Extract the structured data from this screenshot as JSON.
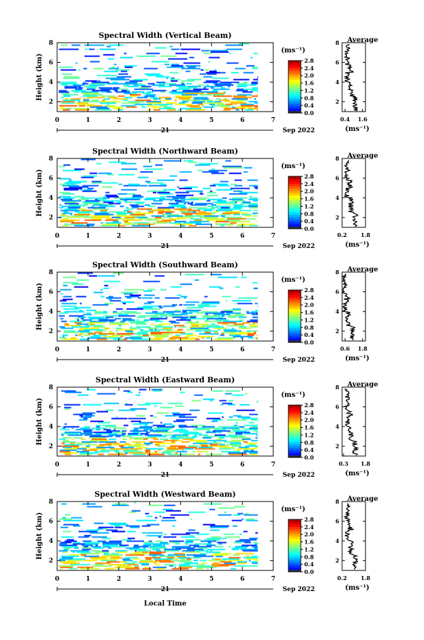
{
  "figure": {
    "xlabel": "Local Time",
    "unit_label": "(ms⁻¹)",
    "date_day": "21",
    "date_month_year": "Sep 2022"
  },
  "chart_data": [
    {
      "type": "heatmap",
      "title": "Spectral Width (Vertical Beam)",
      "ylabel": "Height (km)",
      "xlim": [
        0,
        7
      ],
      "ylim": [
        1,
        8
      ],
      "x_ticks": [
        "0",
        "1",
        "2",
        "3",
        "4",
        "5",
        "6",
        "7"
      ],
      "y_ticks": [
        "2",
        "4",
        "6",
        "8"
      ],
      "colorbar": {
        "label": "(ms⁻¹)",
        "ticks": [
          "0.0",
          "0.4",
          "0.8",
          "1.2",
          "1.6",
          "2.0",
          "2.4",
          "2.8"
        ],
        "range": [
          0,
          2.8
        ]
      },
      "average": {
        "title": "Average",
        "xlabel": "(ms⁻¹)",
        "x_ticks": [
          "0.4",
          "1.6"
        ],
        "xlim": [
          0.2,
          1.8
        ],
        "y_ticks": [
          "2",
          "4",
          "6",
          "8"
        ]
      }
    },
    {
      "type": "heatmap",
      "title": "Spectral Width (Northward Beam)",
      "ylabel": "Height (km)",
      "xlim": [
        0,
        7
      ],
      "ylim": [
        1,
        8
      ],
      "x_ticks": [
        "0",
        "1",
        "2",
        "3",
        "4",
        "5",
        "6",
        "7"
      ],
      "y_ticks": [
        "2",
        "4",
        "6",
        "8"
      ],
      "colorbar": {
        "label": "(ms⁻¹)",
        "ticks": [
          "0.0",
          "0.4",
          "0.8",
          "1.2",
          "1.6",
          "2.0",
          "2.4",
          "2.8"
        ],
        "range": [
          0,
          2.8
        ]
      },
      "average": {
        "title": "Average",
        "xlabel": "(ms⁻¹)",
        "x_ticks": [
          "0.2",
          "1.8"
        ],
        "xlim": [
          0.2,
          1.8
        ],
        "y_ticks": [
          "2",
          "4",
          "6",
          "8"
        ]
      }
    },
    {
      "type": "heatmap",
      "title": "Spectral Width (Southward Beam)",
      "ylabel": "Height (km)",
      "xlim": [
        0,
        7
      ],
      "ylim": [
        1,
        8
      ],
      "x_ticks": [
        "0",
        "1",
        "2",
        "3",
        "4",
        "5",
        "6",
        "7"
      ],
      "y_ticks": [
        "2",
        "4",
        "6",
        "8"
      ],
      "colorbar": {
        "label": "(ms⁻¹)",
        "ticks": [
          "0.0",
          "0.4",
          "0.8",
          "1.2",
          "1.6",
          "2.0",
          "2.4",
          "2.8"
        ],
        "range": [
          0,
          2.8
        ]
      },
      "average": {
        "title": "Average",
        "xlabel": "(ms⁻¹)",
        "x_ticks": [
          "0.6",
          "1.8"
        ],
        "xlim": [
          0.4,
          2.0
        ],
        "y_ticks": [
          "2",
          "4",
          "6",
          "8"
        ]
      }
    },
    {
      "type": "heatmap",
      "title": "Spectral Width (Eastward Beam)",
      "ylabel": "Height (km)",
      "xlim": [
        0,
        7
      ],
      "ylim": [
        1,
        8
      ],
      "x_ticks": [
        "0",
        "1",
        "2",
        "3",
        "4",
        "5",
        "6",
        "7"
      ],
      "y_ticks": [
        "2",
        "4",
        "6",
        "8"
      ],
      "colorbar": {
        "label": "(ms⁻¹)",
        "ticks": [
          "0.0",
          "0.4",
          "0.8",
          "1.2",
          "1.6",
          "2.0",
          "2.4",
          "2.8"
        ],
        "range": [
          0,
          2.8
        ]
      },
      "average": {
        "title": "Average",
        "xlabel": "(ms⁻¹)",
        "x_ticks": [
          "0.3",
          "1.8"
        ],
        "xlim": [
          0.2,
          1.8
        ],
        "y_ticks": [
          "2",
          "4",
          "6",
          "8"
        ]
      }
    },
    {
      "type": "heatmap",
      "title": "Spectral Width (Westward Beam)",
      "ylabel": "Height (km)",
      "xlim": [
        0,
        7
      ],
      "ylim": [
        1,
        8
      ],
      "x_ticks": [
        "0",
        "1",
        "2",
        "3",
        "4",
        "5",
        "6",
        "7"
      ],
      "y_ticks": [
        "2",
        "4",
        "6",
        "8"
      ],
      "colorbar": {
        "label": "(ms⁻¹)",
        "ticks": [
          "0.0",
          "0.4",
          "0.8",
          "1.2",
          "1.6",
          "2.0",
          "2.4",
          "2.8"
        ],
        "range": [
          0,
          2.8
        ]
      },
      "average": {
        "title": "Average",
        "xlabel": "(ms⁻¹)",
        "x_ticks": [
          "0.2",
          "1.8"
        ],
        "xlim": [
          0.2,
          1.8
        ],
        "y_ticks": [
          "2",
          "4",
          "6",
          "8"
        ]
      }
    }
  ]
}
